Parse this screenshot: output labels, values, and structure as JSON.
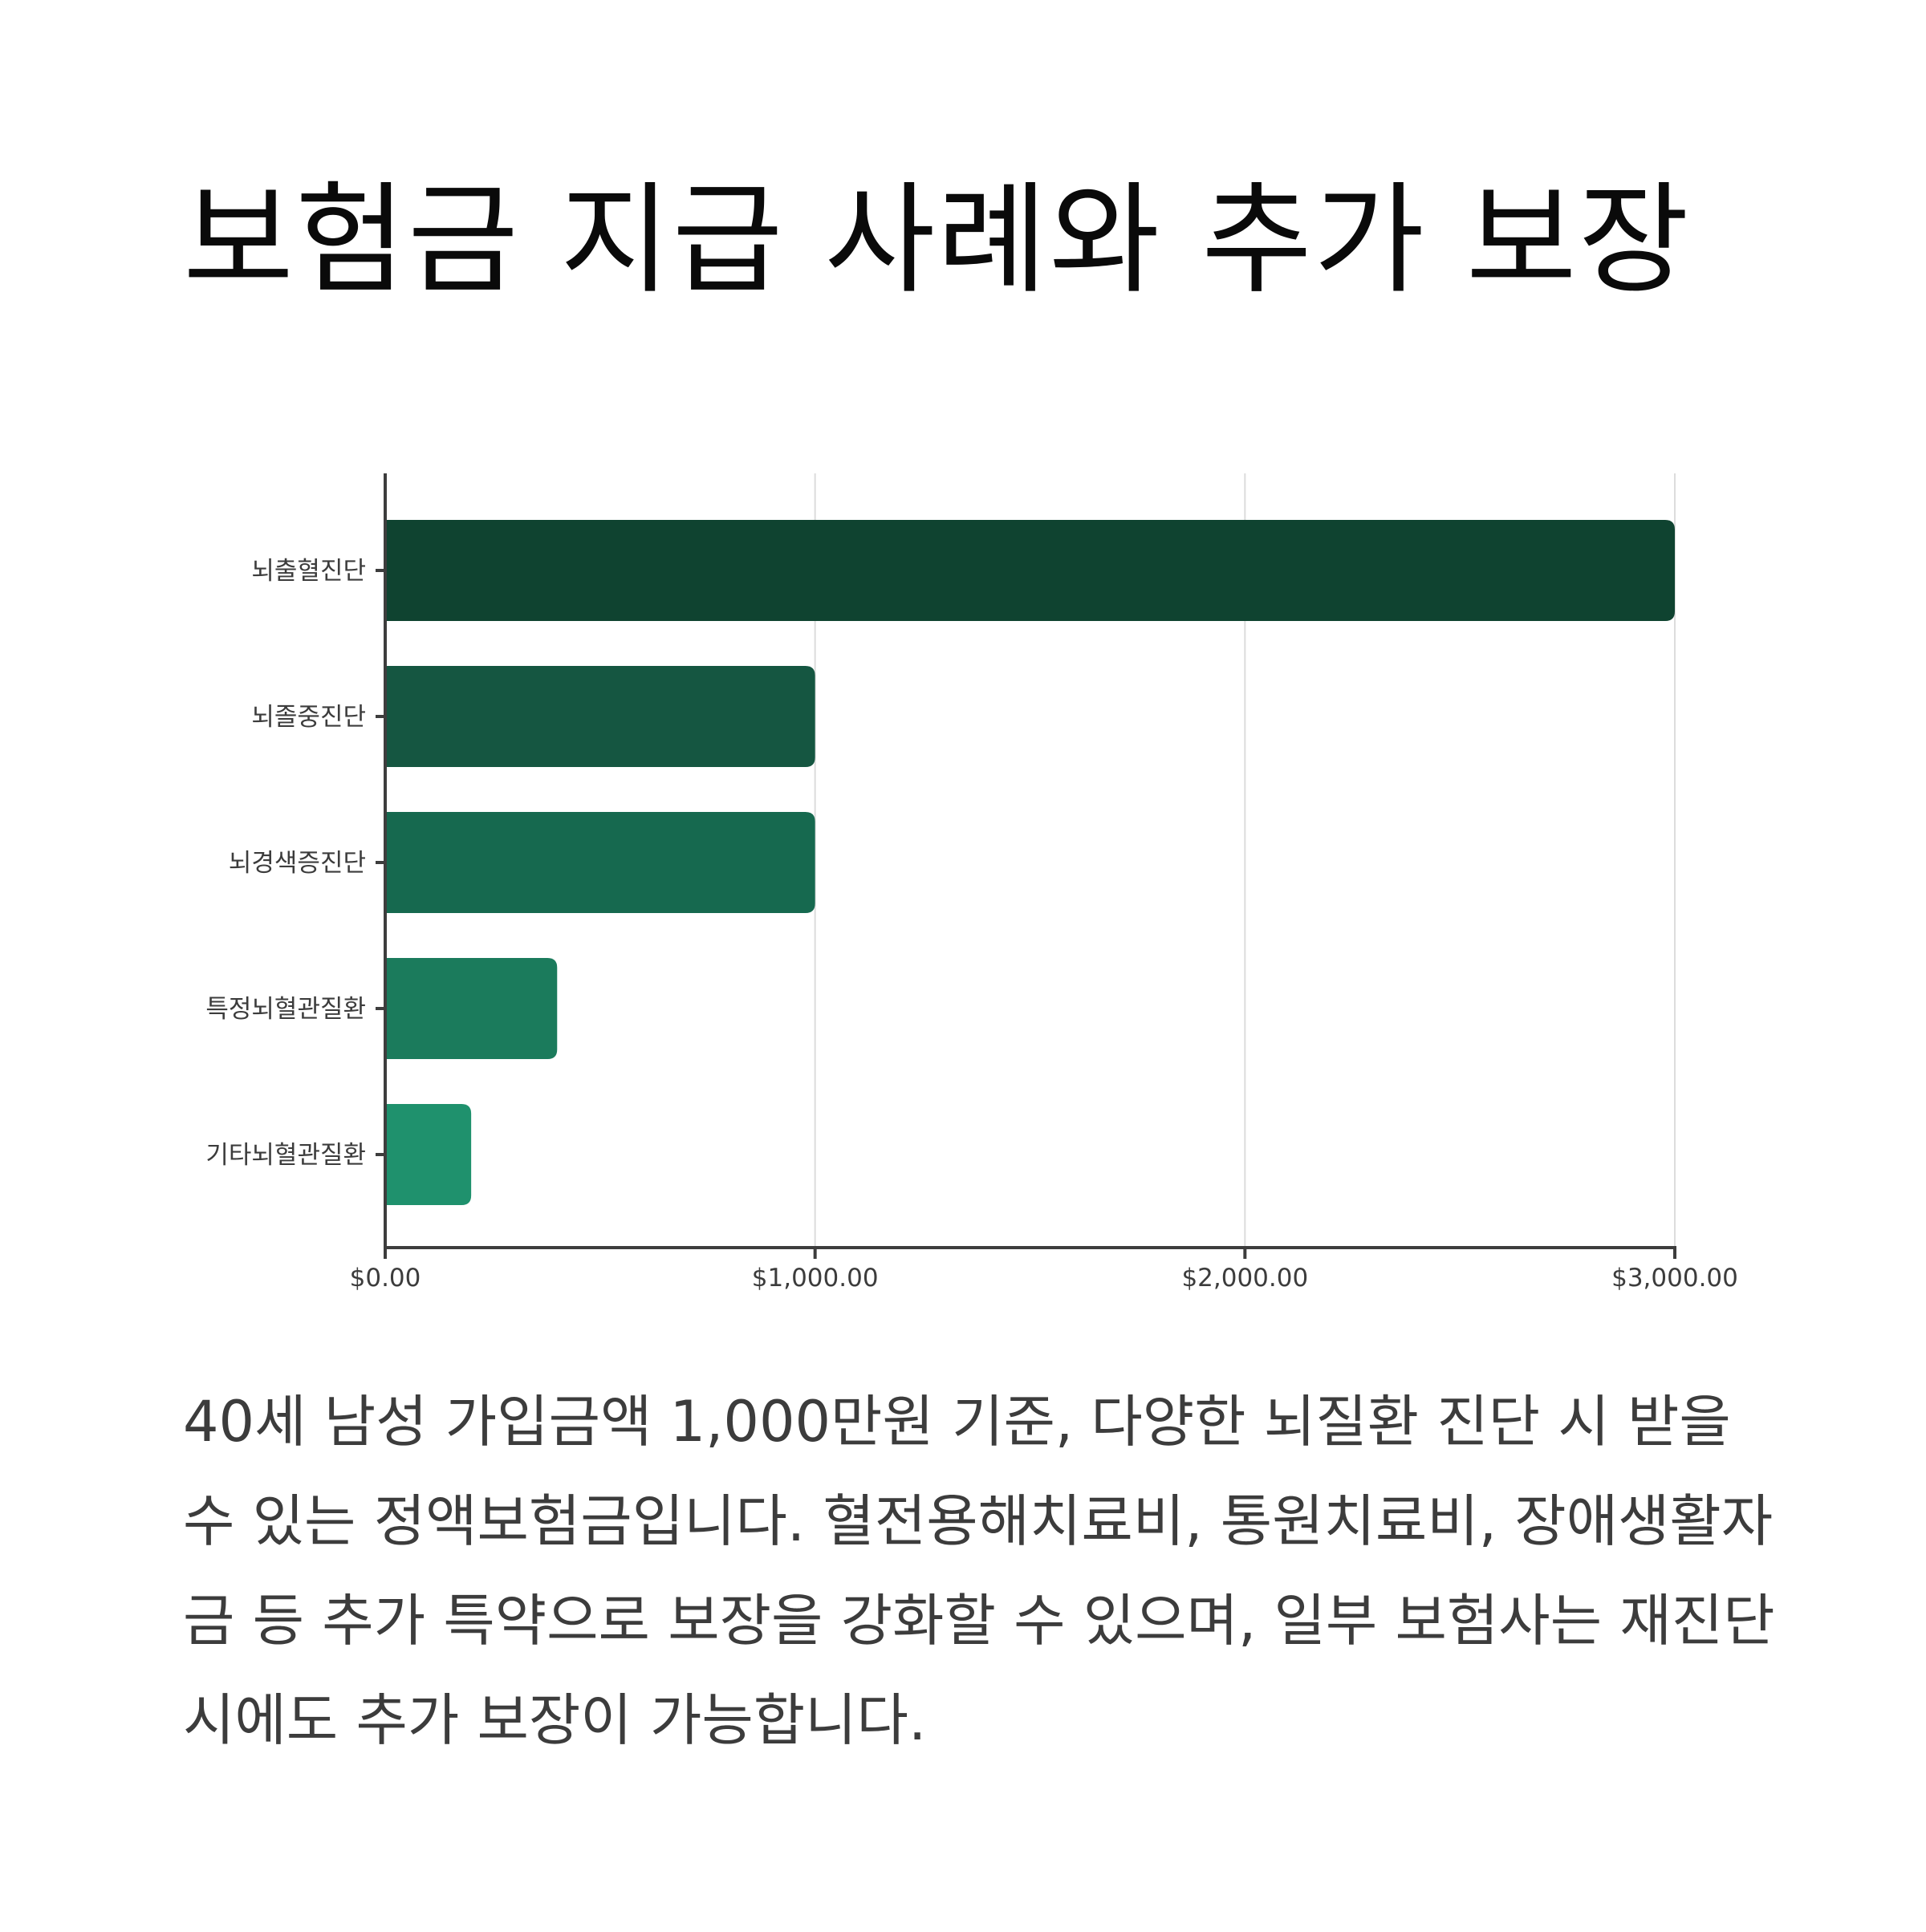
{
  "title": "보험금 지급 사례와 추가 보장",
  "description": "40세 남성 가입금액 1,000만원 기준, 다양한 뇌질환 진단 시 받을 수 있는 정액보험금입니다. 혈전용해치료비, 통원치료비, 장애생활자금 등 추가 특약으로 보장을 강화할 수 있으며, 일부 보험사는 재진단 시에도 추가 보장이 가능합니다.",
  "chart_data": {
    "type": "bar",
    "orientation": "horizontal",
    "categories": [
      "뇌출혈진단",
      "뇌졸중진단",
      "뇌경색증진단",
      "특정뇌혈관질환",
      "기타뇌혈관질환"
    ],
    "values": [
      3000,
      1000,
      1000,
      400,
      200
    ],
    "xlim": [
      0,
      3000
    ],
    "xticks": [
      0,
      1000,
      2000,
      3000
    ],
    "xtick_labels": [
      "$0.00",
      "$1,000.00",
      "$2,000.00",
      "$3,000.00"
    ],
    "grid": "vertical",
    "title": "",
    "xlabel": "",
    "ylabel": ""
  },
  "colors": {
    "bars": [
      "#0f4330",
      "#155641",
      "#16694f",
      "#1b7b5c",
      "#1f916d"
    ],
    "axis": "#3d3d3d",
    "grid": "#dcdcdc",
    "text": "#3c3c3c"
  }
}
